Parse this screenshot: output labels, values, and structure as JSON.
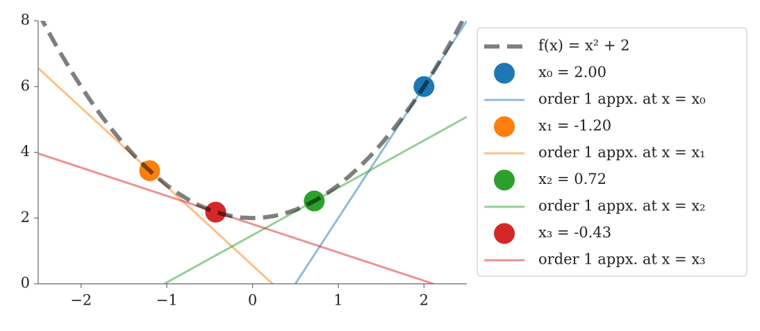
{
  "chart_data": {
    "type": "line",
    "xlim": [
      -2.5,
      2.5
    ],
    "ylim": [
      0,
      8
    ],
    "xticks": [
      {
        "value": -2,
        "label": "−2"
      },
      {
        "value": -1,
        "label": "−1"
      },
      0,
      1,
      2
    ],
    "yticks": [
      0,
      2,
      4,
      6,
      8
    ],
    "legend": "outside-right",
    "series": [
      {
        "name": "f(x) = x² + 2",
        "kind": "line",
        "style": "dashed",
        "color": "#000000",
        "alpha": 0.5,
        "x": [
          -2.5,
          -2.375,
          -2.25,
          -2.125,
          -2,
          -1.875,
          -1.75,
          -1.625,
          -1.5,
          -1.375,
          -1.25,
          -1.125,
          -1,
          -0.875,
          -0.75,
          -0.625,
          -0.5,
          -0.375,
          -0.25,
          -0.125,
          0,
          0.125,
          0.25,
          0.375,
          0.5,
          0.625,
          0.75,
          0.875,
          1,
          1.125,
          1.25,
          1.375,
          1.5,
          1.625,
          1.75,
          1.875,
          2,
          2.125,
          2.25,
          2.375,
          2.5
        ],
        "values": [
          8.25,
          7.640625,
          7.0625,
          6.515625,
          6,
          5.515625,
          5.0625,
          4.640625,
          4.25,
          3.890625,
          3.5625,
          3.265625,
          3,
          2.765625,
          2.5625,
          2.390625,
          2.25,
          2.140625,
          2.0625,
          2.015625,
          2,
          2.015625,
          2.0625,
          2.140625,
          2.25,
          2.390625,
          2.5625,
          2.765625,
          3,
          3.265625,
          3.5625,
          3.890625,
          4.25,
          4.640625,
          5.0625,
          5.515625,
          6,
          6.515625,
          7.0625,
          7.640625,
          8.25
        ]
      },
      {
        "name": "x₀ = 2.00",
        "kind": "scatter",
        "color": "#1f77b4",
        "alpha": 1,
        "x": [
          2
        ],
        "values": [
          6
        ]
      },
      {
        "name": "order 1 appx. at x = x₀",
        "kind": "line",
        "style": "solid",
        "color": "#1f77b4",
        "alpha": 0.5,
        "x": [
          0.5,
          2.5
        ],
        "values": [
          0,
          8
        ]
      },
      {
        "name": "x₁ = -1.20",
        "kind": "scatter",
        "color": "#ff7f0e",
        "alpha": 1,
        "x": [
          -1.2
        ],
        "values": [
          3.44
        ]
      },
      {
        "name": "order 1 appx. at x = x₁",
        "kind": "line",
        "style": "solid",
        "color": "#ff7f0e",
        "alpha": 0.5,
        "x": [
          -2.5,
          0.233
        ],
        "values": [
          6.56,
          0
        ]
      },
      {
        "name": "x₂ = 0.72",
        "kind": "scatter",
        "color": "#2ca02c",
        "alpha": 1,
        "x": [
          0.72
        ],
        "values": [
          2.52
        ]
      },
      {
        "name": "order 1 appx. at x = x₂",
        "kind": "line",
        "style": "solid",
        "color": "#2ca02c",
        "alpha": 0.5,
        "x": [
          -1.029,
          2.5
        ],
        "values": [
          0,
          5.08
        ]
      },
      {
        "name": "x₃ = -0.43",
        "kind": "scatter",
        "color": "#d62728",
        "alpha": 1,
        "x": [
          -0.43
        ],
        "values": [
          2.18
        ]
      },
      {
        "name": "order 1 appx. at x = x₃",
        "kind": "line",
        "style": "solid",
        "color": "#d62728",
        "alpha": 0.5,
        "x": [
          -2.5,
          2.11
        ],
        "values": [
          3.965,
          0
        ]
      }
    ]
  }
}
